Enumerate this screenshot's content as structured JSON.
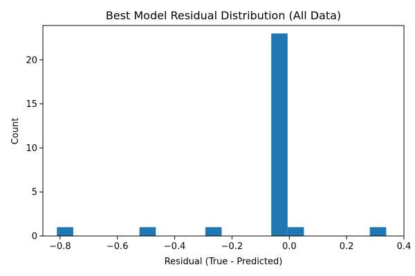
{
  "chart_data": {
    "type": "bar",
    "title": "Best Model Residual Distribution (All Data)",
    "xlabel": "Residual (True - Predicted)",
    "ylabel": "Count",
    "xlim": [
      -0.86,
      0.4
    ],
    "ylim": [
      0,
      23.9
    ],
    "xticks": [
      -0.8,
      -0.6,
      -0.4,
      -0.2,
      0.0,
      0.2,
      0.4
    ],
    "xtick_labels": [
      "−0.8",
      "−0.6",
      "−0.4",
      "−0.2",
      "0.0",
      "0.2",
      "0.4"
    ],
    "yticks": [
      0,
      5,
      10,
      15,
      20
    ],
    "ytick_labels": [
      "0",
      "5",
      "10",
      "15",
      "20"
    ],
    "grid": false,
    "bar_color": "#1f77b4",
    "bars": [
      {
        "x0": -0.811,
        "x1": -0.754,
        "count": 1
      },
      {
        "x0": -0.523,
        "x1": -0.466,
        "count": 1
      },
      {
        "x0": -0.293,
        "x1": -0.236,
        "count": 1
      },
      {
        "x0": -0.063,
        "x1": -0.006,
        "count": 23
      },
      {
        "x0": -0.006,
        "x1": 0.051,
        "count": 1
      },
      {
        "x0": 0.281,
        "x1": 0.338,
        "count": 1
      }
    ]
  }
}
